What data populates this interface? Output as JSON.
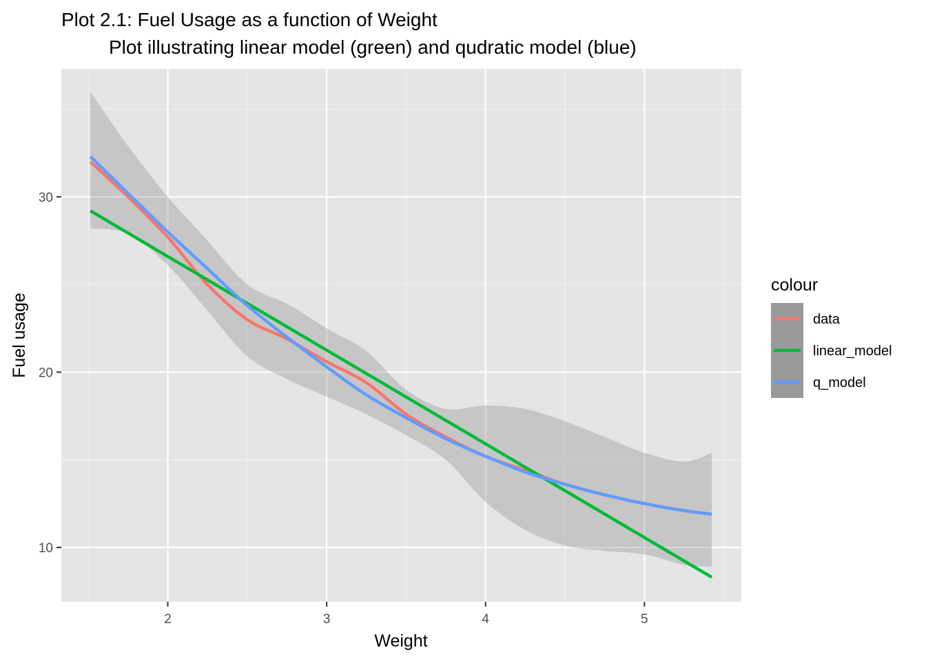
{
  "chart_data": {
    "type": "line",
    "title": "Plot 2.1: Fuel Usage as a function of Weight",
    "subtitle": "Plot illustrating linear model (green) and qudratic model (blue)",
    "xlabel": "Weight",
    "ylabel": "Fuel usage",
    "xlim": [
      1.33,
      5.61
    ],
    "ylim": [
      6.9,
      37.3
    ],
    "x_ticks": [
      2,
      3,
      4,
      5
    ],
    "y_ticks": [
      10,
      20,
      30
    ],
    "grid": true,
    "legend": {
      "title": "colour",
      "position": "right"
    },
    "confidence_band": {
      "x": [
        1.513,
        1.75,
        2.0,
        2.25,
        2.5,
        2.75,
        3.0,
        3.25,
        3.5,
        3.75,
        4.0,
        4.25,
        4.5,
        4.75,
        5.0,
        5.25,
        5.424
      ],
      "upper": [
        36.0,
        32.9,
        30.0,
        27.5,
        25.0,
        23.9,
        22.5,
        21.2,
        19.0,
        17.9,
        18.1,
        17.9,
        17.2,
        16.3,
        15.4,
        14.9,
        15.4
      ],
      "lower": [
        28.2,
        27.9,
        26.1,
        23.5,
        20.9,
        19.6,
        18.6,
        17.6,
        16.4,
        15.0,
        12.6,
        11.0,
        10.1,
        9.8,
        9.6,
        9.0,
        8.9
      ]
    },
    "series": [
      {
        "name": "data",
        "color": "#F8766D",
        "x": [
          1.513,
          1.75,
          2.0,
          2.25,
          2.5,
          2.75,
          3.0,
          3.25,
          3.5,
          3.75,
          4.0,
          4.25,
          4.5,
          4.75,
          5.0,
          5.25,
          5.424
        ],
        "y": [
          32.0,
          30.0,
          27.7,
          25.0,
          23.0,
          21.9,
          20.6,
          19.4,
          17.6,
          16.3,
          15.2,
          14.4,
          13.6,
          13.0,
          12.5,
          12.1,
          11.9
        ]
      },
      {
        "name": "linear_model",
        "color": "#00BA38",
        "x": [
          1.513,
          5.424
        ],
        "y": [
          29.2,
          8.3
        ]
      },
      {
        "name": "q_model",
        "color": "#619CFF",
        "x": [
          1.513,
          1.75,
          2.0,
          2.25,
          2.5,
          2.75,
          3.0,
          3.25,
          3.5,
          3.75,
          4.0,
          4.25,
          4.5,
          4.75,
          5.0,
          5.25,
          5.424
        ],
        "y": [
          32.3,
          30.2,
          28.0,
          25.9,
          23.8,
          22.0,
          20.3,
          18.7,
          17.4,
          16.2,
          15.2,
          14.3,
          13.6,
          13.0,
          12.5,
          12.1,
          11.9
        ]
      }
    ]
  }
}
